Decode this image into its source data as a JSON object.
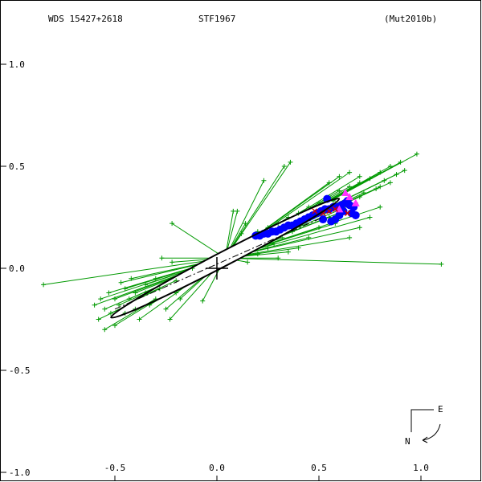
{
  "header": {
    "wds": "WDS 15427+2618",
    "name": "STF1967",
    "ref": "(Mut2010b)"
  },
  "compass": {
    "east": "E",
    "north": "N"
  },
  "chart_data": {
    "type": "scatter",
    "title": "",
    "xlabel": "",
    "ylabel": "",
    "xlim": [
      -1.05,
      1.3
    ],
    "ylim": [
      -1.0,
      1.3
    ],
    "grid": false,
    "x_ticks": [
      {
        "v": -0.5,
        "label": "-0.5"
      },
      {
        "v": 0.0,
        "label": "0.0"
      },
      {
        "v": 0.5,
        "label": "0.5"
      },
      {
        "v": 1.0,
        "label": "1.0"
      }
    ],
    "y_ticks": [
      {
        "v": 1.0,
        "label": "1.0"
      },
      {
        "v": 0.5,
        "label": "0.5"
      },
      {
        "v": 0.0,
        "label": "0.0"
      },
      {
        "v": -0.5,
        "label": "-0.5"
      },
      {
        "v": -1.0,
        "label": "-1.0"
      }
    ],
    "orbit": {
      "center": [
        0.04,
        0.05
      ],
      "semi_major": 0.63,
      "semi_minor": 0.035,
      "angle_deg": 27.5
    },
    "line_of_nodes": [
      [
        -0.5,
        -0.2
      ],
      [
        0.52,
        0.25
      ]
    ],
    "origin": [
      0,
      0
    ],
    "series": [
      {
        "marker": "plus",
        "color": "#009900",
        "points": [
          [
            -0.85,
            -0.08
          ],
          [
            -0.58,
            -0.25
          ],
          [
            -0.55,
            -0.2
          ],
          [
            -0.5,
            -0.15
          ],
          [
            -0.45,
            -0.1
          ],
          [
            -0.48,
            -0.18
          ],
          [
            -0.52,
            -0.22
          ],
          [
            -0.4,
            -0.2
          ],
          [
            -0.38,
            -0.25
          ],
          [
            -0.35,
            -0.12
          ],
          [
            -0.3,
            -0.15
          ],
          [
            -0.42,
            -0.05
          ],
          [
            -0.5,
            -0.28
          ],
          [
            -0.55,
            -0.3
          ],
          [
            -0.6,
            -0.18
          ],
          [
            -0.45,
            -0.22
          ],
          [
            -0.2,
            -0.12
          ],
          [
            -0.25,
            -0.2
          ],
          [
            -0.18,
            -0.15
          ],
          [
            -0.07,
            -0.16
          ],
          [
            -0.3,
            -0.05
          ],
          [
            -0.35,
            -0.08
          ],
          [
            -0.28,
            -0.1
          ],
          [
            -0.23,
            -0.25
          ],
          [
            -0.33,
            -0.18
          ],
          [
            -0.43,
            -0.15
          ],
          [
            -0.47,
            -0.07
          ],
          [
            -0.4,
            -0.12
          ],
          [
            -0.53,
            -0.12
          ],
          [
            -0.57,
            -0.15
          ],
          [
            -0.22,
            0.03
          ],
          [
            -0.27,
            0.05
          ],
          [
            -0.2,
            -0.06
          ],
          [
            -0.12,
            0.0
          ],
          [
            -0.22,
            0.22
          ],
          [
            0.08,
            0.28
          ],
          [
            0.23,
            0.43
          ],
          [
            0.33,
            0.5
          ],
          [
            0.36,
            0.52
          ],
          [
            0.1,
            0.28
          ],
          [
            0.12,
            0.17
          ],
          [
            0.14,
            0.22
          ],
          [
            0.2,
            0.18
          ],
          [
            0.25,
            0.2
          ],
          [
            0.3,
            0.22
          ],
          [
            0.35,
            0.25
          ],
          [
            0.4,
            0.27
          ],
          [
            0.45,
            0.3
          ],
          [
            0.5,
            0.32
          ],
          [
            0.55,
            0.35
          ],
          [
            0.6,
            0.38
          ],
          [
            0.65,
            0.4
          ],
          [
            0.7,
            0.42
          ],
          [
            0.75,
            0.44
          ],
          [
            0.8,
            0.47
          ],
          [
            0.85,
            0.5
          ],
          [
            0.9,
            0.52
          ],
          [
            0.98,
            0.56
          ],
          [
            0.85,
            0.42
          ],
          [
            0.8,
            0.4
          ],
          [
            0.7,
            0.35
          ],
          [
            0.6,
            0.3
          ],
          [
            0.55,
            0.25
          ],
          [
            0.5,
            0.2
          ],
          [
            0.45,
            0.15
          ],
          [
            0.4,
            0.1
          ],
          [
            0.35,
            0.08
          ],
          [
            0.3,
            0.05
          ],
          [
            0.25,
            0.1
          ],
          [
            0.2,
            0.07
          ],
          [
            0.15,
            0.03
          ],
          [
            1.1,
            0.02
          ],
          [
            0.65,
            0.15
          ],
          [
            0.7,
            0.2
          ],
          [
            0.75,
            0.25
          ],
          [
            0.8,
            0.3
          ],
          [
            0.62,
            0.28
          ],
          [
            0.58,
            0.22
          ],
          [
            0.68,
            0.32
          ],
          [
            0.72,
            0.37
          ],
          [
            0.78,
            0.39
          ],
          [
            0.82,
            0.43
          ],
          [
            0.88,
            0.46
          ],
          [
            0.92,
            0.48
          ],
          [
            0.57,
            0.33
          ],
          [
            0.52,
            0.28
          ],
          [
            0.47,
            0.25
          ],
          [
            0.42,
            0.22
          ],
          [
            0.37,
            0.18
          ],
          [
            0.32,
            0.15
          ],
          [
            0.28,
            0.12
          ],
          [
            0.6,
            0.45
          ],
          [
            0.55,
            0.42
          ],
          [
            0.65,
            0.47
          ],
          [
            0.7,
            0.45
          ]
        ]
      },
      {
        "marker": "circle",
        "color": "#0000ff",
        "points": [
          [
            0.19,
            0.16
          ],
          [
            0.21,
            0.16
          ],
          [
            0.23,
            0.17
          ],
          [
            0.25,
            0.17
          ],
          [
            0.27,
            0.18
          ],
          [
            0.29,
            0.18
          ],
          [
            0.31,
            0.19
          ],
          [
            0.33,
            0.2
          ],
          [
            0.35,
            0.21
          ],
          [
            0.37,
            0.21
          ],
          [
            0.39,
            0.22
          ],
          [
            0.41,
            0.23
          ],
          [
            0.43,
            0.24
          ],
          [
            0.45,
            0.25
          ],
          [
            0.47,
            0.26
          ],
          [
            0.49,
            0.27
          ],
          [
            0.51,
            0.28
          ],
          [
            0.53,
            0.29
          ],
          [
            0.55,
            0.29
          ],
          [
            0.57,
            0.3
          ],
          [
            0.59,
            0.3
          ],
          [
            0.61,
            0.31
          ],
          [
            0.63,
            0.32
          ],
          [
            0.65,
            0.31
          ],
          [
            0.67,
            0.3
          ],
          [
            0.62,
            0.28
          ],
          [
            0.6,
            0.26
          ],
          [
            0.58,
            0.24
          ],
          [
            0.56,
            0.23
          ],
          [
            0.54,
            0.34
          ],
          [
            0.64,
            0.33
          ],
          [
            0.66,
            0.27
          ],
          [
            0.68,
            0.26
          ],
          [
            0.52,
            0.24
          ]
        ]
      },
      {
        "marker": "triangle",
        "color": "#ff33ff",
        "points": [
          [
            0.63,
            0.37
          ],
          [
            0.65,
            0.35
          ],
          [
            0.68,
            0.32
          ],
          [
            0.6,
            0.29
          ]
        ]
      },
      {
        "marker": "xcross",
        "color": "#cc0000",
        "points": [
          [
            0.48,
            0.28
          ],
          [
            0.52,
            0.27
          ],
          [
            0.55,
            0.28
          ],
          [
            0.58,
            0.29
          ],
          [
            0.64,
            0.27
          ]
        ]
      }
    ]
  }
}
